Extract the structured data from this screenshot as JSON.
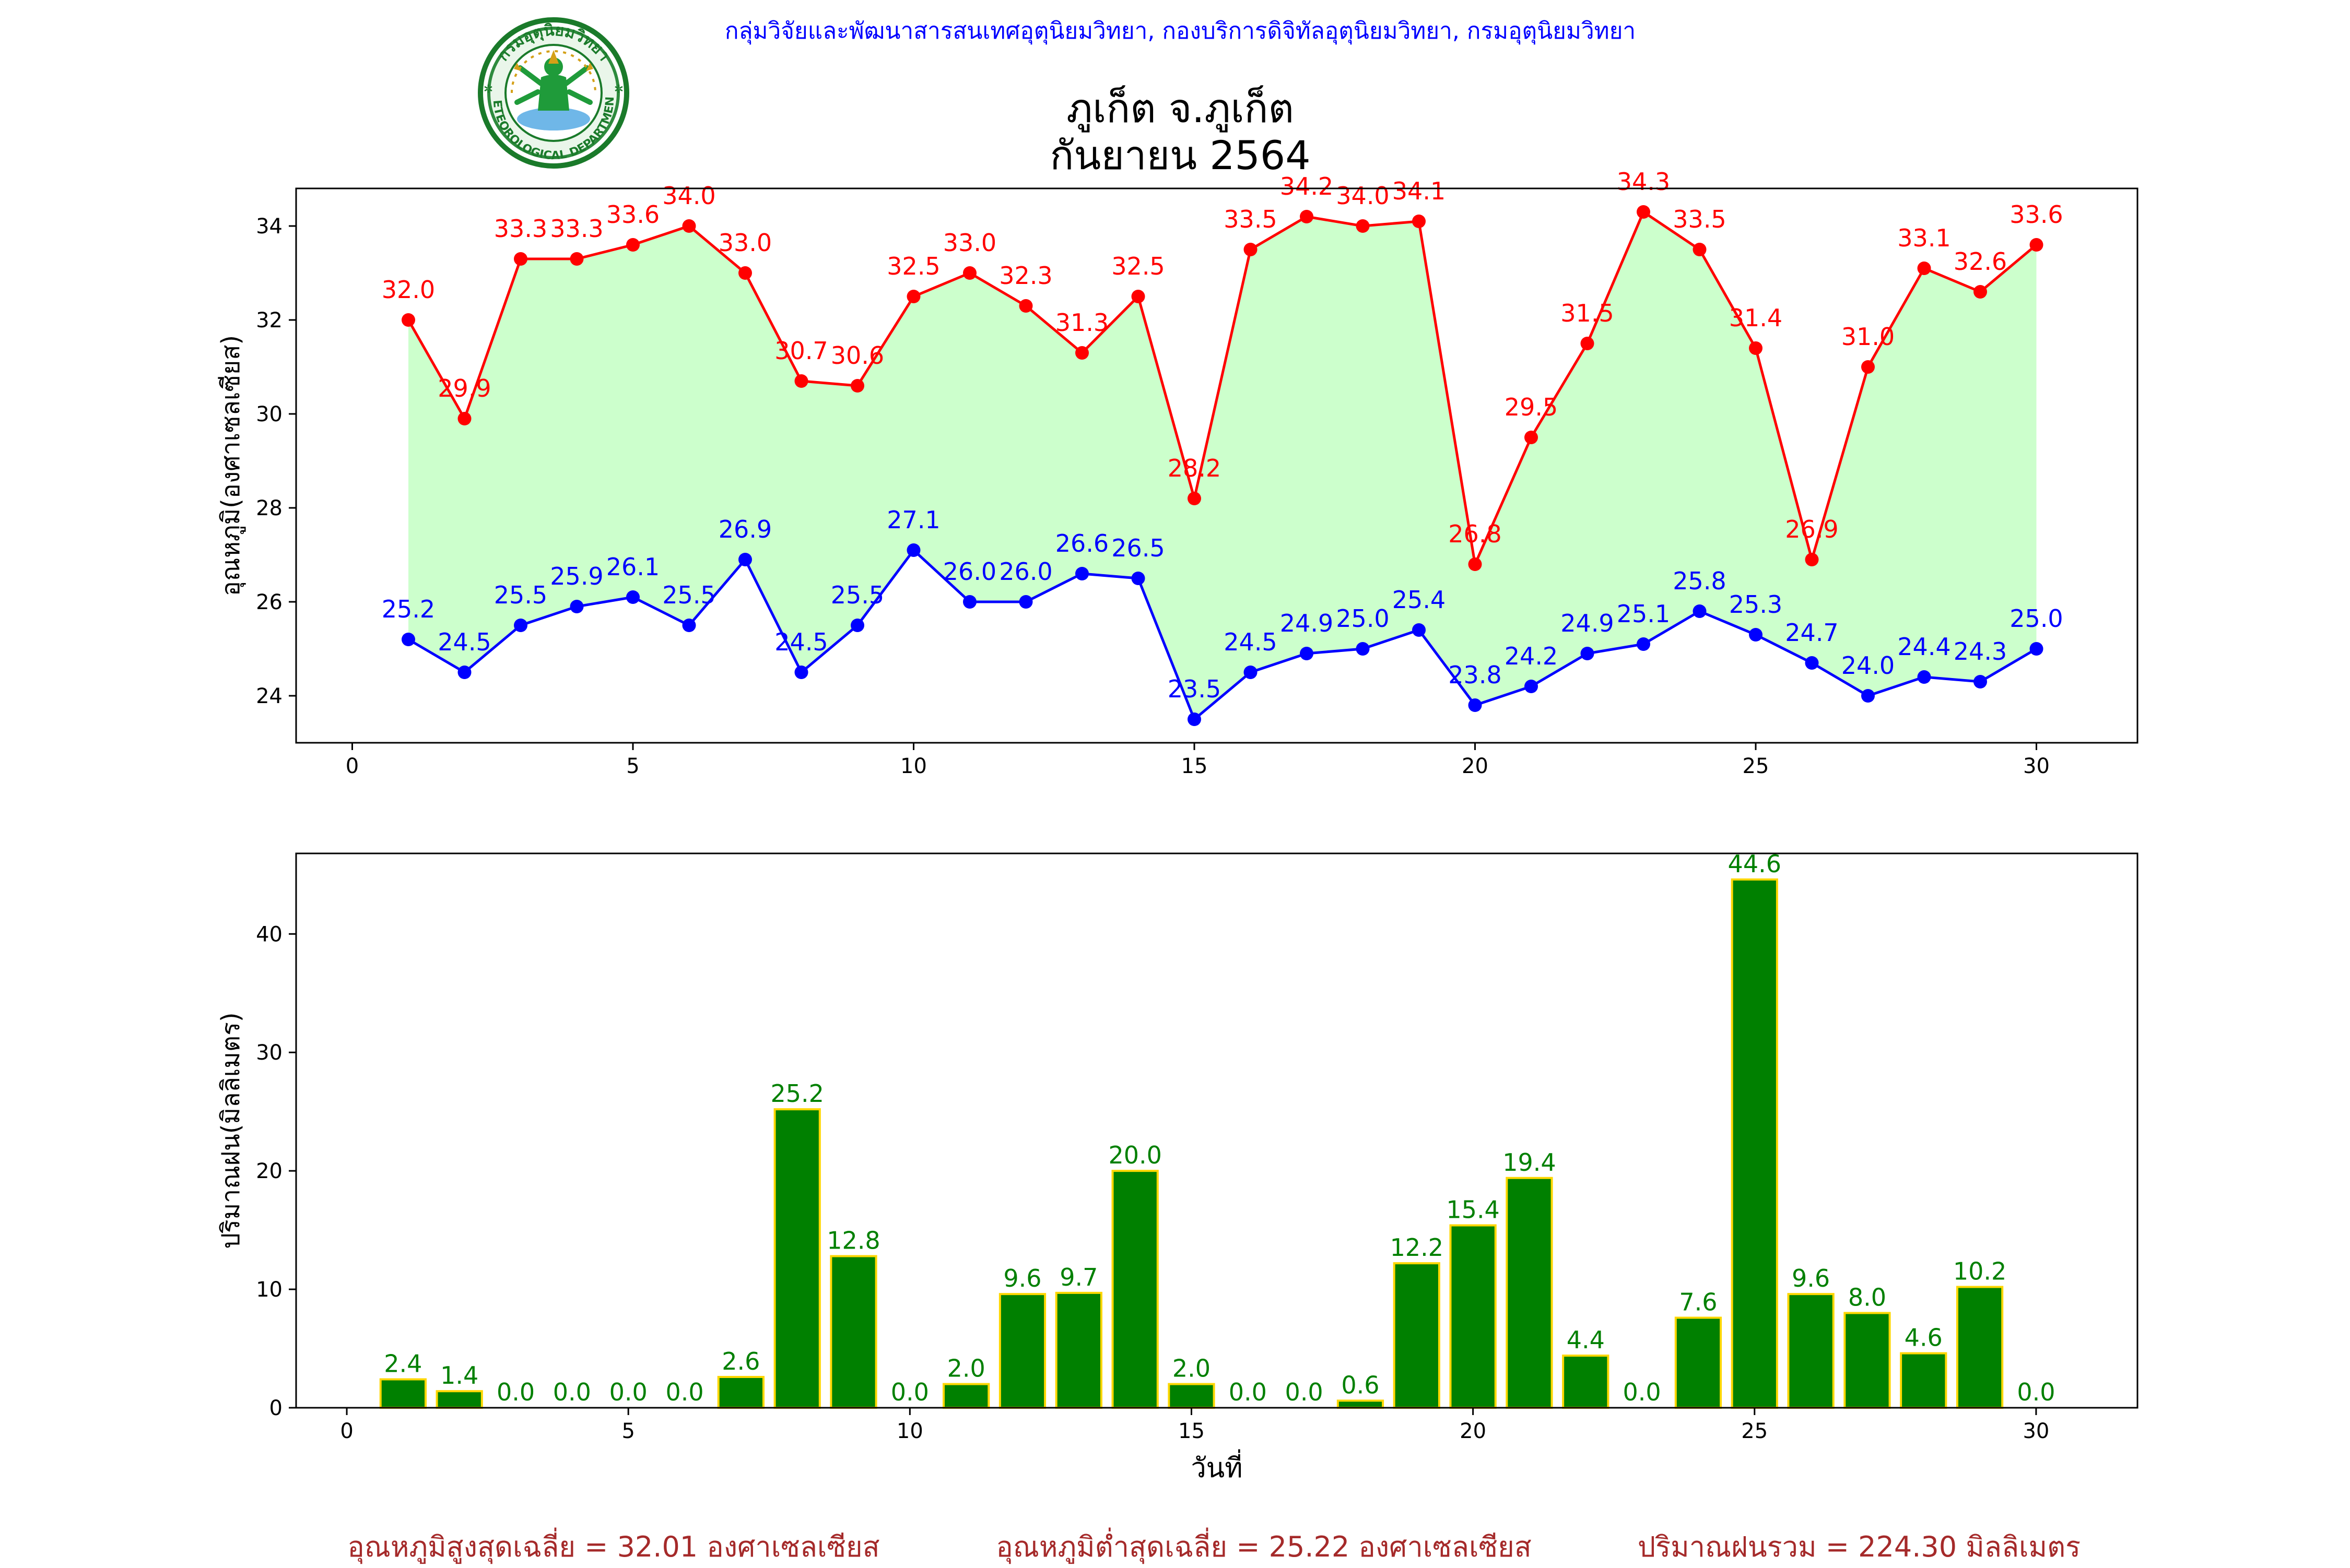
{
  "header": {
    "org_line": "กลุ่มวิจัยและพัฒนาสารสนเทศอุตุนิยมวิทยา, กองบริการดิจิทัลอุตุนิยมวิทยา, กรมอุตุนิยมวิทยา",
    "logo_text_top": "กรมอุตุนิยมวิทยา",
    "logo_text_bottom": "METEOROLOGICAL DEPARTMENT",
    "title_line1": "ภูเก็ต จ.ภูเก็ต",
    "title_line2": "กันยายน 2564"
  },
  "colors": {
    "max_line": "#ff0000",
    "min_line": "#0000ff",
    "fill": "#ccffcc",
    "bar_fill": "#008000",
    "bar_edge": "#ffd700",
    "header_text": "#0000ff",
    "footer_text": "#a52a2a"
  },
  "chart_data": [
    {
      "type": "line",
      "ylabel": "อุณหภูมิ(องศาเซลเซียส)",
      "xlabel": "",
      "xlim": [
        -1,
        31.8
      ],
      "ylim": [
        23,
        34.8
      ],
      "xticks": [
        0,
        5,
        10,
        15,
        20,
        25,
        30
      ],
      "yticks": [
        24,
        26,
        28,
        30,
        32,
        34
      ],
      "grid": false,
      "x": [
        1,
        2,
        3,
        4,
        5,
        6,
        7,
        8,
        9,
        10,
        11,
        12,
        13,
        14,
        15,
        16,
        17,
        18,
        19,
        20,
        21,
        22,
        23,
        24,
        25,
        26,
        27,
        28,
        29,
        30
      ],
      "series": [
        {
          "key": "max",
          "values": [
            32.0,
            29.9,
            33.3,
            33.3,
            33.6,
            34.0,
            33.0,
            30.7,
            30.6,
            32.5,
            33.0,
            32.3,
            31.3,
            32.5,
            28.2,
            33.5,
            34.2,
            34.0,
            34.1,
            26.8,
            29.5,
            31.5,
            34.3,
            33.5,
            31.4,
            26.9,
            31.0,
            33.1,
            32.6,
            33.6
          ],
          "labels": [
            "32.0",
            "29.9",
            "33.3",
            "33.3",
            "33.6",
            "34.0",
            "33.0",
            "30.7",
            "30.6",
            "32.5",
            "33.0",
            "32.3",
            "31.3",
            "32.5",
            "28.2",
            "33.5",
            "34.2",
            "34.0",
            "34.1",
            "26.8",
            "29.5",
            "31.5",
            "34.3",
            "33.5",
            "31.4",
            "26.9",
            "31.0",
            "33.1",
            "32.6",
            "33.6"
          ]
        },
        {
          "key": "min",
          "values": [
            25.2,
            24.5,
            25.5,
            25.9,
            26.1,
            25.5,
            26.9,
            24.5,
            25.5,
            27.1,
            26.0,
            26.0,
            26.6,
            26.5,
            23.5,
            24.5,
            24.9,
            25.0,
            25.4,
            23.8,
            24.2,
            24.9,
            25.1,
            25.8,
            25.3,
            24.7,
            24.0,
            24.4,
            24.3,
            25.0
          ],
          "labels": [
            "25.2",
            "24.5",
            "25.5",
            "25.9",
            "26.1",
            "25.5",
            "26.9",
            "24.5",
            "25.5",
            "27.1",
            "26.0",
            "26.0",
            "26.6",
            "26.5",
            "23.5",
            "24.5",
            "24.9",
            "25.0",
            "25.4",
            "23.8",
            "24.2",
            "24.9",
            "25.1",
            "25.8",
            "25.3",
            "24.7",
            "24.0",
            "24.4",
            "24.3",
            "25.0"
          ]
        }
      ]
    },
    {
      "type": "bar",
      "ylabel": "ปริมาณฝน(มิลลิเมตร)",
      "xlabel": "วันที่",
      "xlim": [
        -0.9,
        31.8
      ],
      "ylim": [
        0,
        46.8
      ],
      "xticks": [
        0,
        5,
        10,
        15,
        20,
        25,
        30
      ],
      "yticks": [
        0,
        10,
        20,
        30,
        40
      ],
      "grid": false,
      "x": [
        1,
        2,
        3,
        4,
        5,
        6,
        7,
        8,
        9,
        10,
        11,
        12,
        13,
        14,
        15,
        16,
        17,
        18,
        19,
        20,
        21,
        22,
        23,
        24,
        25,
        26,
        27,
        28,
        29,
        30
      ],
      "values": [
        2.4,
        1.4,
        0.0,
        0.0,
        0.0,
        0.0,
        2.6,
        25.2,
        12.8,
        0.0,
        2.0,
        9.6,
        9.7,
        20.0,
        2.0,
        0.0,
        0.0,
        0.6,
        12.2,
        15.4,
        19.4,
        4.4,
        0.0,
        7.6,
        44.6,
        9.6,
        8.0,
        4.6,
        10.2,
        0.0
      ],
      "labels": [
        "2.4",
        "1.4",
        "0.0",
        "0.0",
        "0.0",
        "0.0",
        "2.6",
        "25.2",
        "12.8",
        "0.0",
        "2.0",
        "9.6",
        "9.7",
        "20.0",
        "2.0",
        "0.0",
        "0.0",
        "0.6",
        "12.2",
        "15.4",
        "19.4",
        "4.4",
        "0.0",
        "7.6",
        "44.6",
        "9.6",
        "8.0",
        "4.6",
        "10.2",
        "0.0"
      ]
    }
  ],
  "footer": {
    "avg_max": "อุณหภูมิสูงสุดเฉลี่ย = 32.01 องศาเซลเซียส",
    "avg_min": "อุณหภูมิต่ำสุดเฉลี่ย = 25.22 องศาเซลเซียส",
    "total_rain": "ปริมาณฝนรวม = 224.30 มิลลิเมตร"
  }
}
